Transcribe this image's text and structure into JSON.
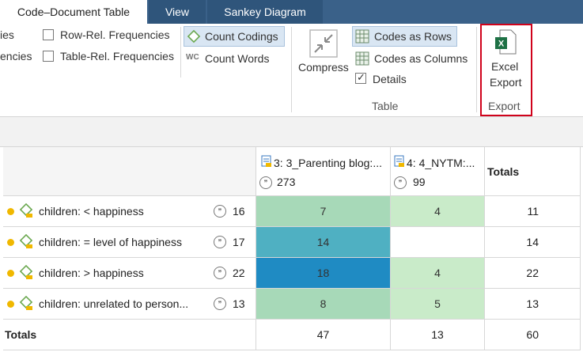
{
  "tabs": {
    "active": "Code–Document Table",
    "view": "View",
    "sankey": "Sankey Diagram"
  },
  "ribbon": {
    "freq1_partial": "ies",
    "freq2_partial": "encies",
    "row_rel": "Row-Rel. Frequencies",
    "table_rel": "Table-Rel. Frequencies",
    "count_codings": "Count Codings",
    "count_words": "Count Words",
    "wc_glyph": "WC",
    "compress": "Compress",
    "codes_rows": "Codes as Rows",
    "codes_columns": "Codes as Columns",
    "details": "Details",
    "table_group": "Table",
    "excel_line1": "Excel",
    "excel_line2": "Export",
    "export_group": "Export",
    "highlight_color": "#d0021b"
  },
  "table": {
    "columns": [
      {
        "label": "3: 3_Parenting blog:...",
        "count": "273"
      },
      {
        "label": "4: 4_NYTM:...",
        "count": "99"
      },
      {
        "label": "Totals"
      }
    ],
    "rows": [
      {
        "code": "children: < happiness",
        "count": "16",
        "values": [
          "7",
          "4"
        ],
        "total": "11"
      },
      {
        "code": "children: = level of happiness",
        "count": "17",
        "values": [
          "14",
          ""
        ],
        "total": "14"
      },
      {
        "code": "children: > happiness",
        "count": "22",
        "values": [
          "18",
          "4"
        ],
        "total": "22"
      },
      {
        "code": "children: unrelated to person...",
        "count": "13",
        "values": [
          "8",
          "5"
        ],
        "total": "13"
      }
    ],
    "totals_row": {
      "label": "Totals",
      "values": [
        "47",
        "13"
      ],
      "total": "60"
    },
    "cell_colors": [
      [
        "#a7d9b8",
        "#c9ebc9"
      ],
      [
        "#4fb0c2",
        "#ffffff"
      ],
      [
        "#1f8bc3",
        "#c9ebc9"
      ],
      [
        "#a7d9b8",
        "#c9ebc9"
      ]
    ]
  }
}
